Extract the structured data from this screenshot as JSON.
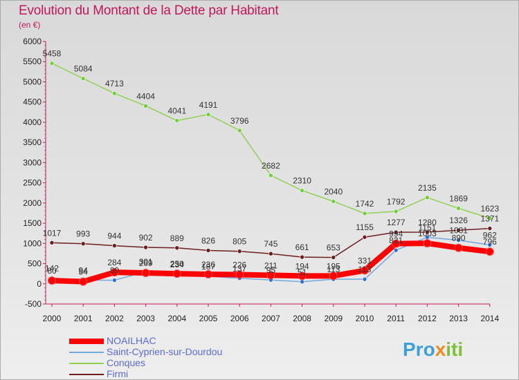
{
  "title": "Evolution du Montant de la Dette par Habitant",
  "unit": "(en €)",
  "brand": "Proxiti",
  "chart_data": {
    "type": "line",
    "x": [
      "2000",
      "2001",
      "2002",
      "2003",
      "2004",
      "2005",
      "2006",
      "2007",
      "2008",
      "2009",
      "2010",
      "2011",
      "2012",
      "2013",
      "2014"
    ],
    "ylim": [
      -500,
      6000
    ],
    "yticks": [
      -500,
      0,
      500,
      1000,
      1500,
      2000,
      2500,
      3000,
      3500,
      4000,
      4500,
      5000,
      5500,
      6000
    ],
    "grid": false,
    "legend_position": "bottom-left",
    "series": [
      {
        "name": "NOAILHAC",
        "color": "#ff0000",
        "marker": "#ff0000",
        "values": [
          80,
          54,
          284,
          269,
          250,
          236,
          226,
          211,
          194,
          195,
          331,
          994,
          1003,
          890,
          796
        ]
      },
      {
        "name": "Saint-Cyprien-sur-Dourdou",
        "color": "#6fa8dc",
        "marker": "#2f6fd6",
        "values": [
          142,
          94,
          89,
          301,
          234,
          187,
          137,
          95,
          51,
          113,
          113,
          831,
          1151,
          1081,
          962
        ]
      },
      {
        "name": "Conques",
        "color": "#8fd14f",
        "marker": "#6fcf3a",
        "values": [
          5458,
          5084,
          4713,
          4404,
          4041,
          4191,
          3796,
          2682,
          2310,
          2040,
          1742,
          1792,
          2135,
          1869,
          1623
        ]
      },
      {
        "name": "Firmi",
        "color": "#6b1f1f",
        "marker": "#6b1f1f",
        "values": [
          1017,
          993,
          944,
          902,
          889,
          826,
          805,
          745,
          661,
          653,
          1155,
          1277,
          1280,
          1326,
          1371
        ]
      }
    ]
  }
}
